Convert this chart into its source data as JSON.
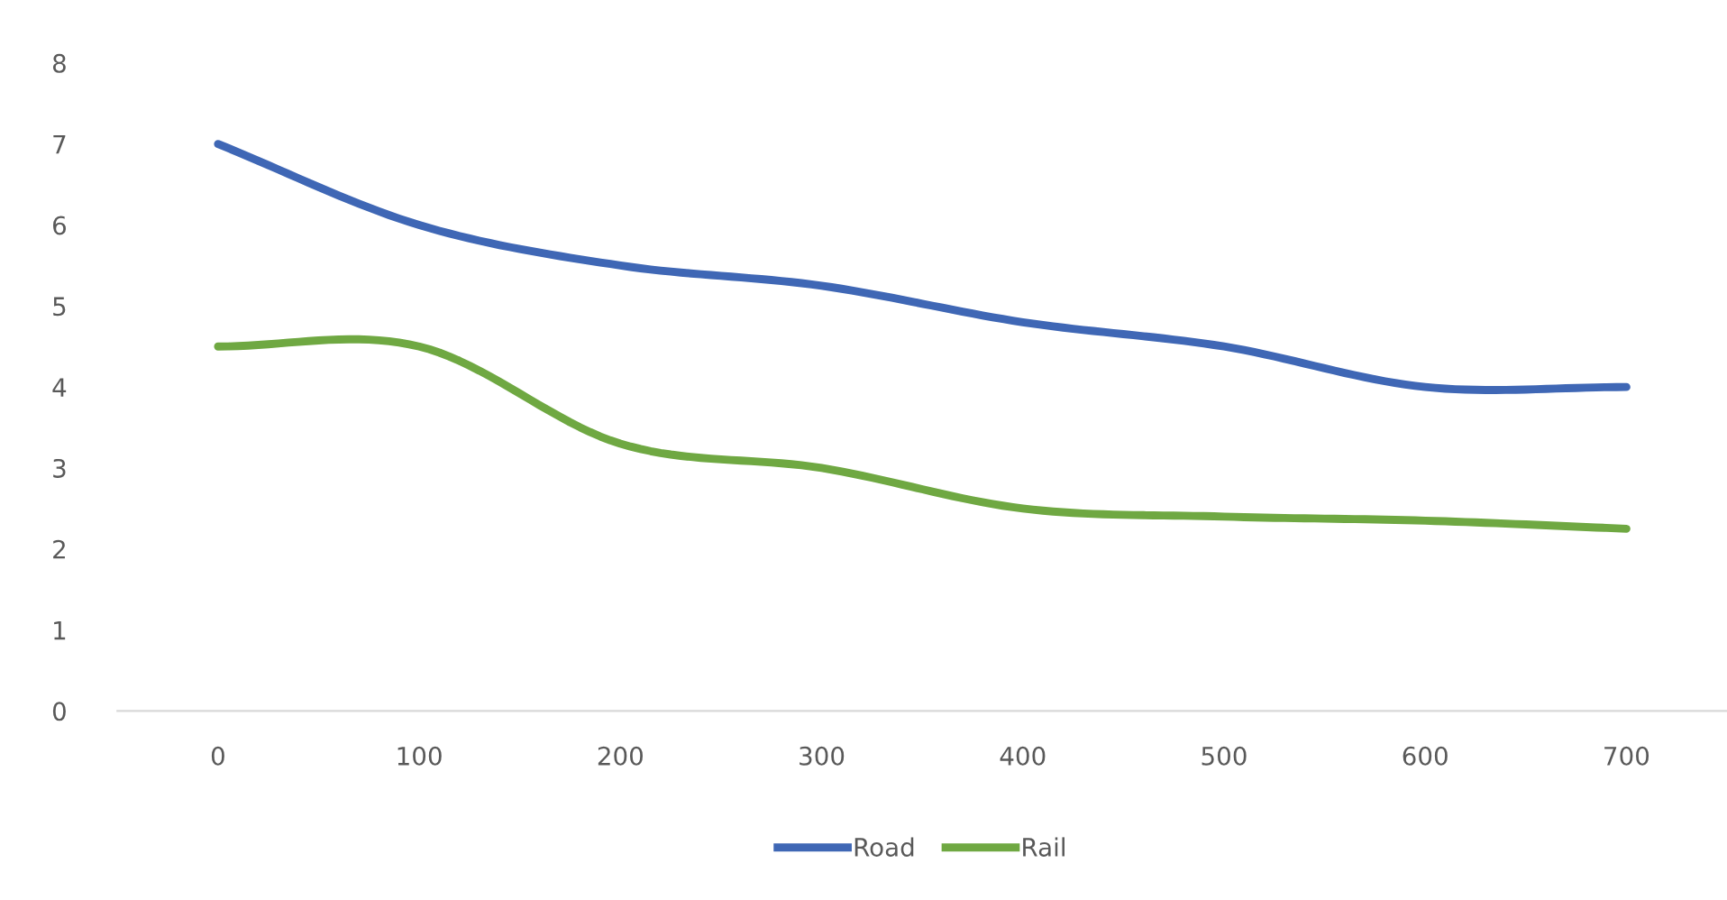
{
  "chart_data": {
    "type": "line",
    "categories": [
      "0",
      "100",
      "200",
      "300",
      "400",
      "500",
      "600",
      "700"
    ],
    "series": [
      {
        "name": "Road",
        "color": "#3f67b5",
        "values": [
          7.0,
          6.0,
          5.5,
          5.25,
          4.8,
          4.5,
          4.0,
          4.0
        ]
      },
      {
        "name": "Rail",
        "color": "#6fa842",
        "values": [
          4.5,
          4.5,
          3.3,
          3.0,
          2.5,
          2.4,
          2.35,
          2.25
        ]
      }
    ],
    "ylim": [
      0,
      8
    ],
    "yticks": [
      0,
      1,
      2,
      3,
      4,
      5,
      6,
      7,
      8
    ],
    "grid": false,
    "legend": "bottom",
    "marker": "none",
    "line_style": "solid"
  }
}
